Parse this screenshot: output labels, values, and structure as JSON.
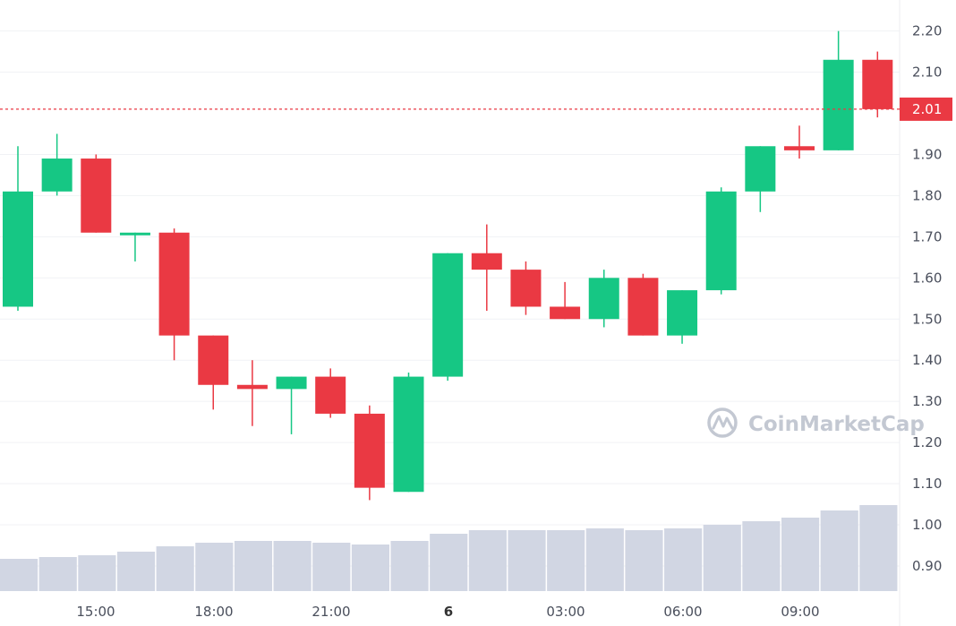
{
  "chart_data": {
    "type": "candlestick",
    "y_axis": {
      "ticks": [
        "0.90",
        "1.00",
        "1.10",
        "1.20",
        "1.30",
        "1.40",
        "1.50",
        "1.60",
        "1.70",
        "1.80",
        "1.90",
        "2.10",
        "2.20"
      ],
      "position": "right"
    },
    "x_axis": {
      "ticks": [
        {
          "label": "15:00",
          "bold": false
        },
        {
          "label": "18:00",
          "bold": false
        },
        {
          "label": "21:00",
          "bold": false
        },
        {
          "label": "6",
          "bold": true
        },
        {
          "label": "03:00",
          "bold": false
        },
        {
          "label": "06:00",
          "bold": false
        },
        {
          "label": "09:00",
          "bold": false
        }
      ]
    },
    "current_price": {
      "label": "2.01",
      "value": 2.01,
      "color": "#ea3943"
    },
    "candles": [
      {
        "o": 1.53,
        "h": 1.92,
        "l": 1.52,
        "c": 1.81
      },
      {
        "o": 1.81,
        "h": 1.95,
        "l": 1.8,
        "c": 1.89
      },
      {
        "o": 1.89,
        "h": 1.9,
        "l": 1.71,
        "c": 1.71
      },
      {
        "o": 1.71,
        "h": 1.71,
        "l": 1.64,
        "c": 1.71
      },
      {
        "o": 1.71,
        "h": 1.72,
        "l": 1.4,
        "c": 1.46
      },
      {
        "o": 1.46,
        "h": 1.46,
        "l": 1.28,
        "c": 1.34
      },
      {
        "o": 1.34,
        "h": 1.4,
        "l": 1.24,
        "c": 1.33
      },
      {
        "o": 1.33,
        "h": 1.36,
        "l": 1.22,
        "c": 1.36
      },
      {
        "o": 1.36,
        "h": 1.38,
        "l": 1.26,
        "c": 1.27
      },
      {
        "o": 1.27,
        "h": 1.29,
        "l": 1.06,
        "c": 1.09
      },
      {
        "o": 1.08,
        "h": 1.37,
        "l": 1.08,
        "c": 1.36
      },
      {
        "o": 1.36,
        "h": 1.66,
        "l": 1.35,
        "c": 1.66
      },
      {
        "o": 1.66,
        "h": 1.73,
        "l": 1.52,
        "c": 1.62
      },
      {
        "o": 1.62,
        "h": 1.64,
        "l": 1.51,
        "c": 1.53
      },
      {
        "o": 1.53,
        "h": 1.59,
        "l": 1.5,
        "c": 1.5
      },
      {
        "o": 1.5,
        "h": 1.62,
        "l": 1.48,
        "c": 1.6
      },
      {
        "o": 1.6,
        "h": 1.61,
        "l": 1.46,
        "c": 1.46
      },
      {
        "o": 1.46,
        "h": 1.57,
        "l": 1.44,
        "c": 1.57
      },
      {
        "o": 1.57,
        "h": 1.82,
        "l": 1.56,
        "c": 1.81
      },
      {
        "o": 1.81,
        "h": 1.92,
        "l": 1.76,
        "c": 1.92
      },
      {
        "o": 1.92,
        "h": 1.97,
        "l": 1.89,
        "c": 1.91
      },
      {
        "o": 1.91,
        "h": 2.2,
        "l": 1.91,
        "c": 2.13
      },
      {
        "o": 2.13,
        "h": 2.15,
        "l": 1.99,
        "c": 2.01
      }
    ],
    "volume": [
      0.18,
      0.19,
      0.2,
      0.22,
      0.25,
      0.27,
      0.28,
      0.28,
      0.27,
      0.26,
      0.28,
      0.32,
      0.34,
      0.34,
      0.34,
      0.35,
      0.34,
      0.35,
      0.37,
      0.39,
      0.41,
      0.45,
      0.48
    ],
    "colors": {
      "up": "#16c784",
      "down": "#ea3943",
      "volume": "#d1d6e3",
      "grid": "#f1f2f5"
    },
    "grid": true
  },
  "watermark": {
    "text": "CoinMarketCap",
    "logo": "coinmarketcap-logo-icon"
  }
}
